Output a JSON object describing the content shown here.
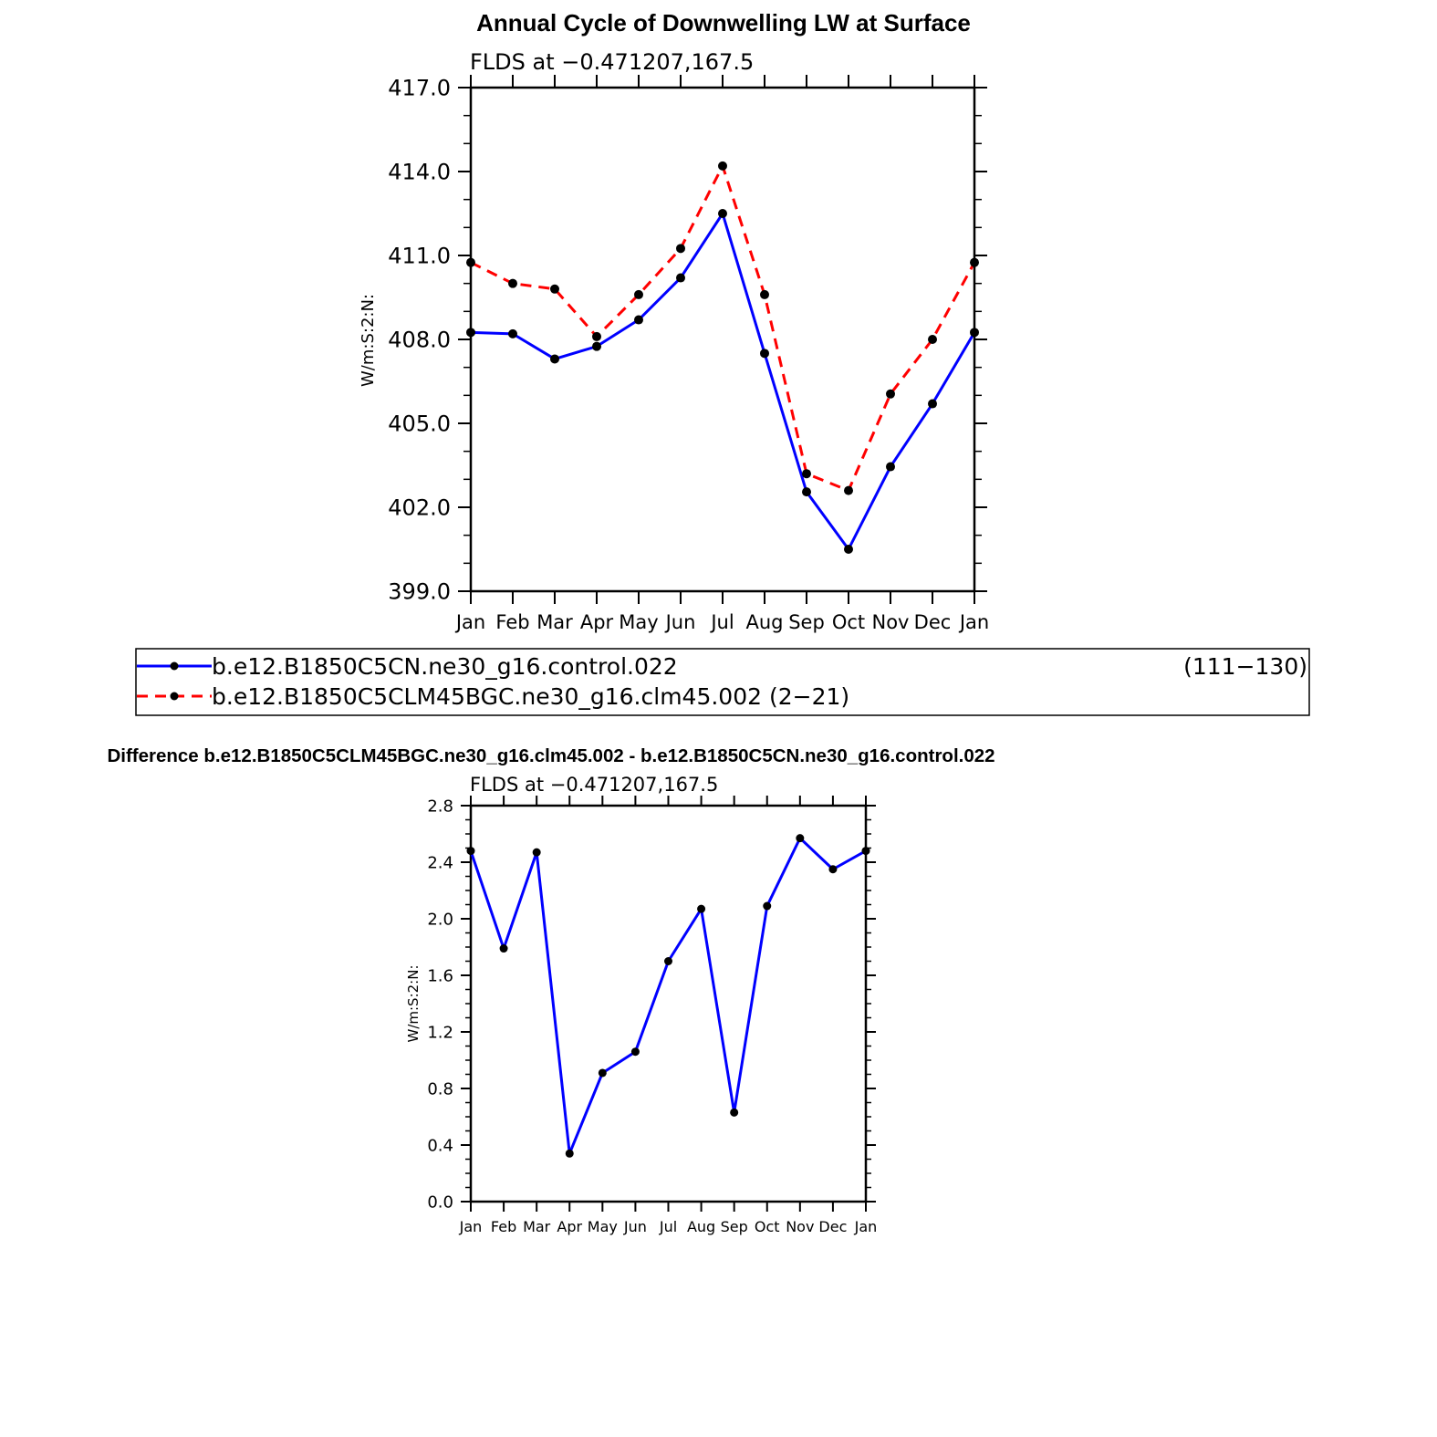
{
  "chart_data": [
    {
      "type": "line",
      "title": "Annual Cycle of Downwelling LW at Surface",
      "subtitle": "FLDS at −0.471207,167.5",
      "ylabel": "W/m:S:2:N:",
      "xlabel": "",
      "categories": [
        "Jan",
        "Feb",
        "Mar",
        "Apr",
        "May",
        "Jun",
        "Jul",
        "Aug",
        "Sep",
        "Oct",
        "Nov",
        "Dec",
        "Jan"
      ],
      "ylim": [
        399.0,
        417.0
      ],
      "yticks": [
        "399.0",
        "402.0",
        "405.0",
        "408.0",
        "411.0",
        "414.0",
        "417.0"
      ],
      "grid": false,
      "legend_placement": "below",
      "series": [
        {
          "name": "b.e12.B1850C5CN.ne30_g16.control.022",
          "years": "(111−130)",
          "color": "#0000ff",
          "dash": "solid",
          "values": [
            408.25,
            408.2,
            407.3,
            407.75,
            408.7,
            410.2,
            412.5,
            407.5,
            402.55,
            400.5,
            403.45,
            405.7,
            408.25
          ]
        },
        {
          "name": "b.e12.B1850C5CLM45BGC.ne30_g16.clm45.002 (2−21)",
          "color": "#ff0000",
          "dash": "dashed",
          "values": [
            410.75,
            410.0,
            409.8,
            408.1,
            409.6,
            411.25,
            414.2,
            409.6,
            403.2,
            402.6,
            406.05,
            408.0,
            410.75
          ]
        }
      ]
    },
    {
      "type": "line",
      "title": "Difference b.e12.B1850C5CLM45BGC.ne30_g16.clm45.002 - b.e12.B1850C5CN.ne30_g16.control.022",
      "subtitle": "FLDS at −0.471207,167.5",
      "ylabel": "W/m:S:2:N:",
      "xlabel": "",
      "categories": [
        "Jan",
        "Feb",
        "Mar",
        "Apr",
        "May",
        "Jun",
        "Jul",
        "Aug",
        "Sep",
        "Oct",
        "Nov",
        "Dec",
        "Jan"
      ],
      "ylim": [
        0.0,
        2.8
      ],
      "yticks": [
        "0.0",
        "0.4",
        "0.8",
        "1.2",
        "1.6",
        "2.0",
        "2.4",
        "2.8"
      ],
      "grid": false,
      "series": [
        {
          "color": "#0000ff",
          "dash": "solid",
          "values": [
            2.48,
            1.79,
            2.47,
            0.34,
            0.91,
            1.06,
            1.7,
            2.07,
            0.63,
            2.09,
            2.57,
            2.35,
            2.48
          ]
        }
      ]
    }
  ]
}
